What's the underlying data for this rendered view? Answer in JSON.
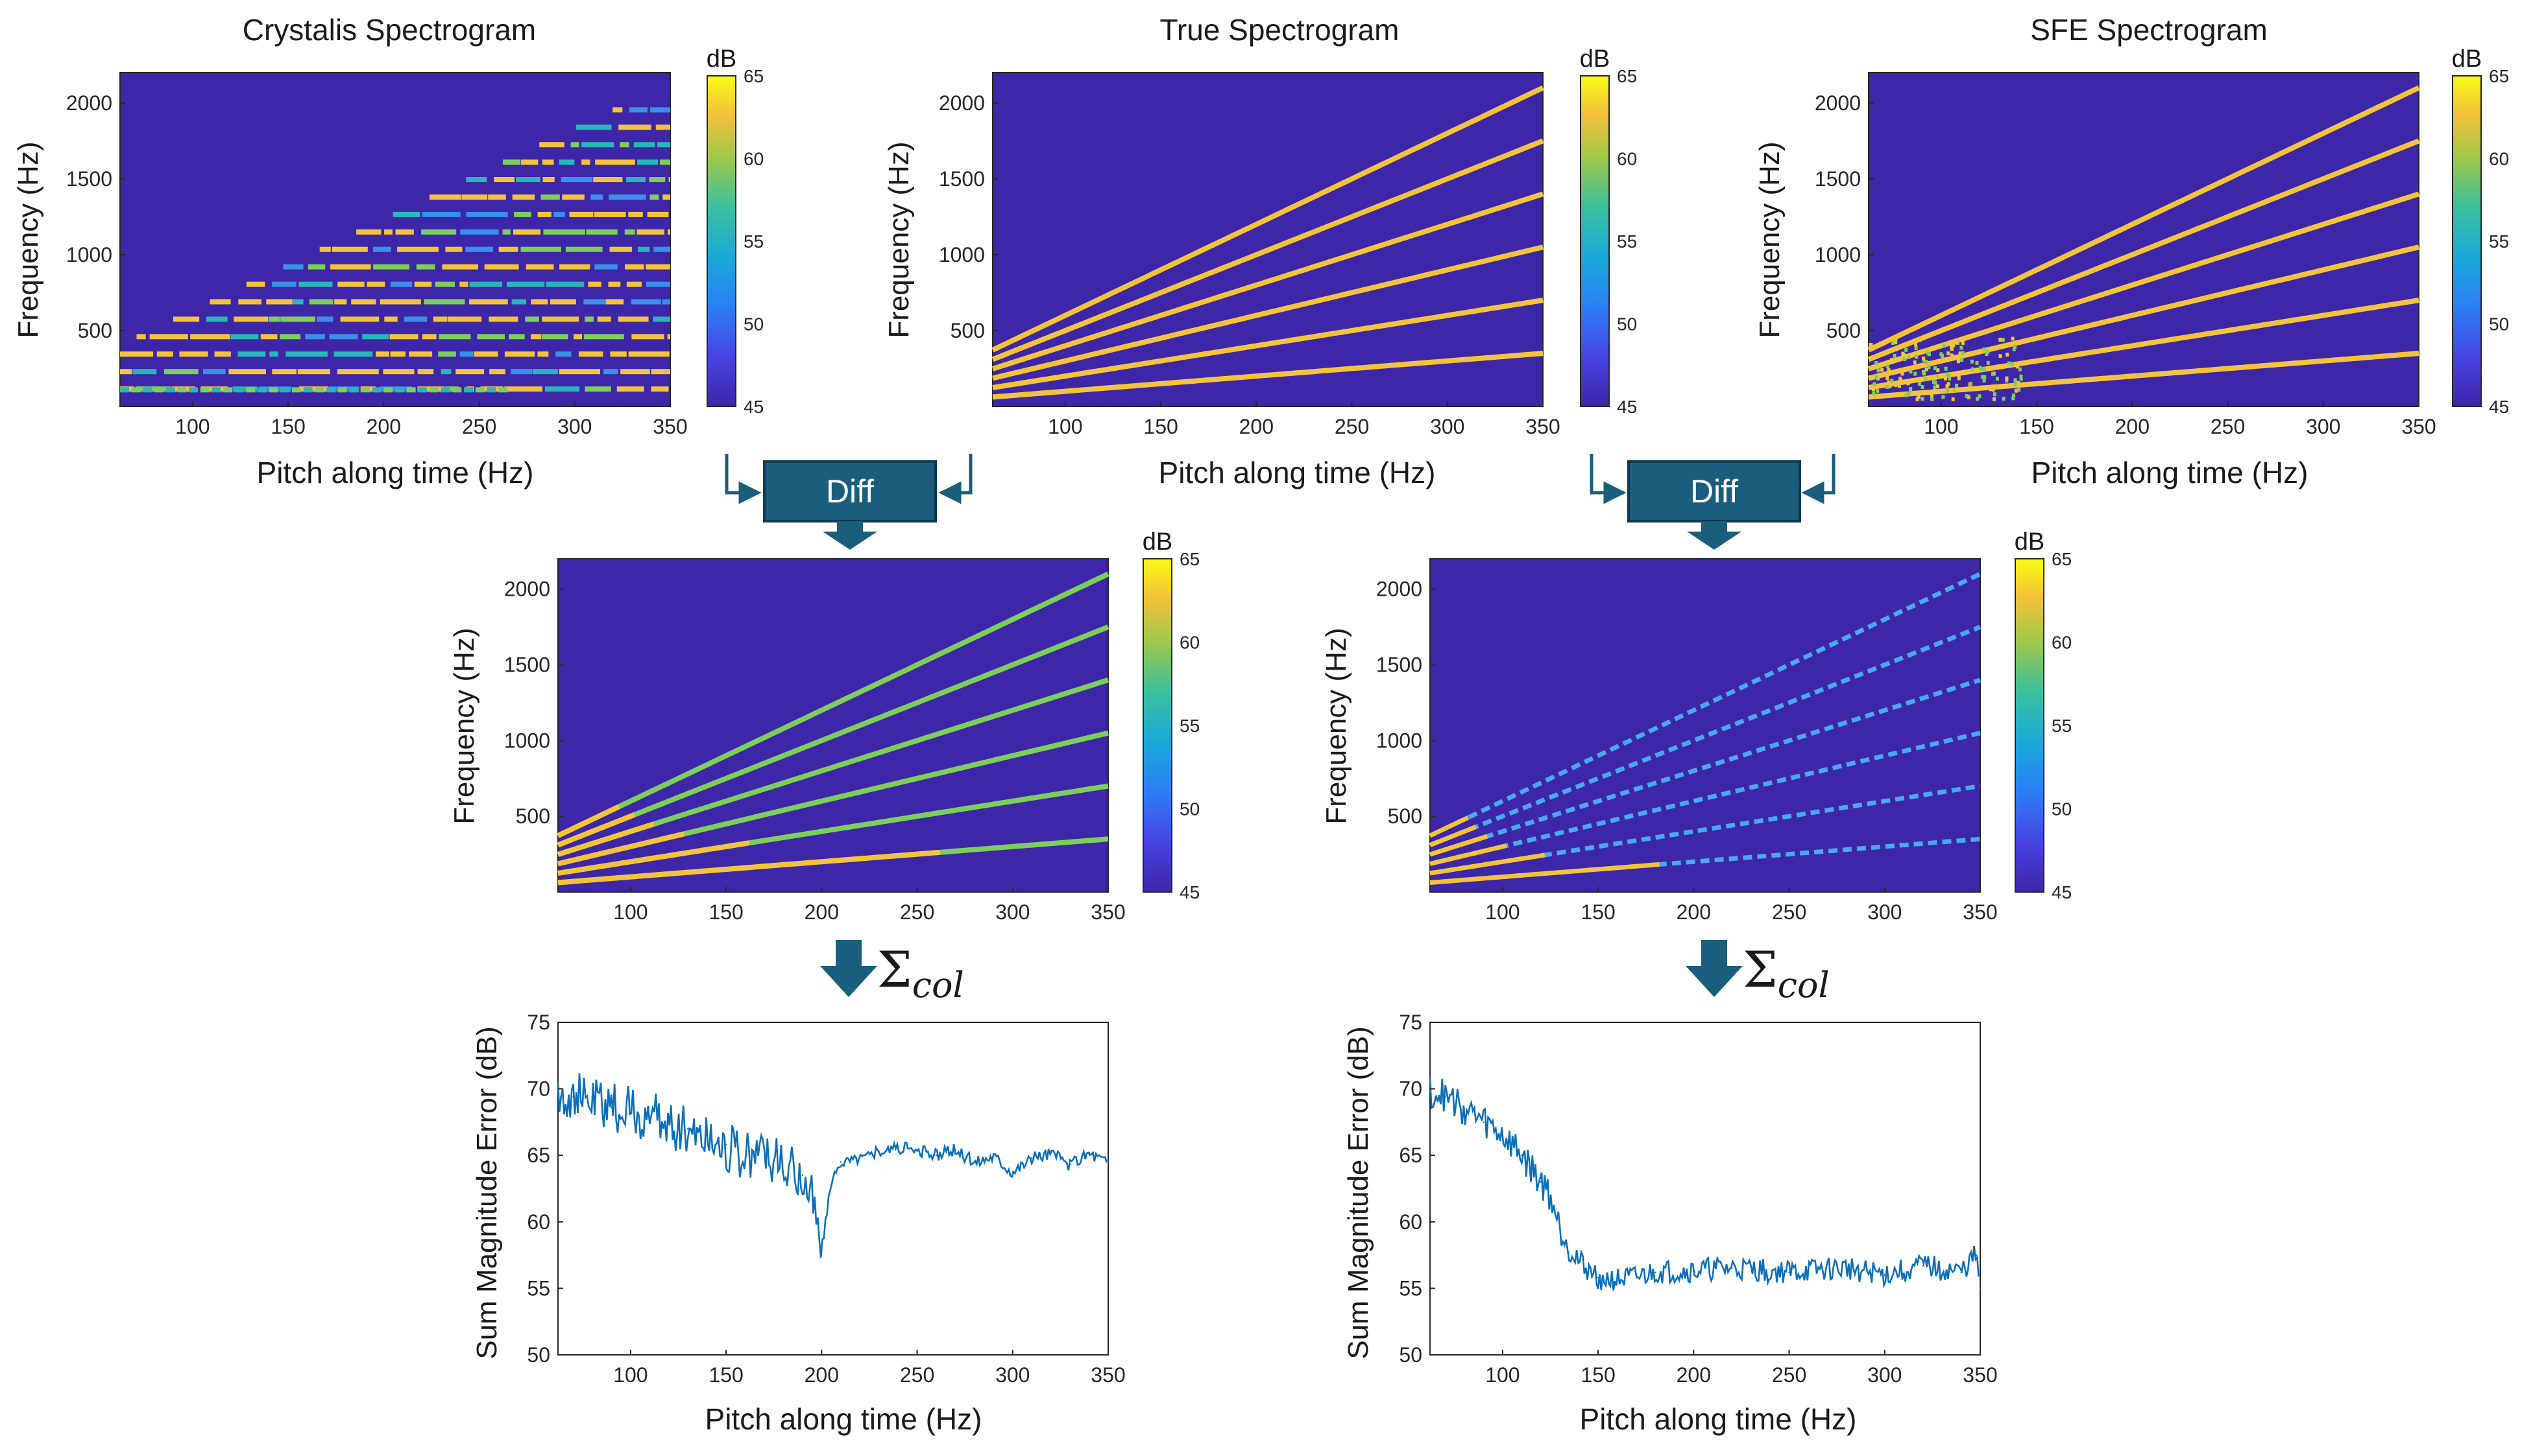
{
  "chart_data": [
    {
      "id": "crystalis",
      "type": "heatmap",
      "title": "Crystalis Spectrogram",
      "xlabel": "Pitch along time (Hz)",
      "ylabel": "Frequency (Hz)",
      "xlim": [
        62,
        350
      ],
      "ylim": [
        0,
        2200
      ],
      "xticks": [
        "100",
        "150",
        "200",
        "250",
        "300",
        "350"
      ],
      "yticks": [
        "500",
        "1000",
        "1500",
        "2000"
      ],
      "pattern": "quantized-horizontal-bands",
      "colorbar": {
        "label": "dB",
        "ticks": [
          "65",
          "60",
          "55",
          "50",
          "45"
        ],
        "min": 45,
        "max": 65
      }
    },
    {
      "id": "true",
      "type": "heatmap",
      "title": "True Spectrogram",
      "xlabel": "Pitch along time (Hz)",
      "ylabel": "Frequency (Hz)",
      "xlim": [
        62,
        350
      ],
      "ylim": [
        0,
        2200
      ],
      "xticks": [
        "100",
        "150",
        "200",
        "250",
        "300",
        "350"
      ],
      "yticks": [
        "500",
        "1000",
        "1500",
        "2000"
      ],
      "harmonics": [
        1,
        2,
        3,
        4,
        5,
        6
      ],
      "colorbar": {
        "label": "dB",
        "ticks": [
          "65",
          "60",
          "55",
          "50",
          "45"
        ],
        "min": 45,
        "max": 65
      }
    },
    {
      "id": "sfe",
      "type": "heatmap",
      "title": "SFE Spectrogram",
      "xlabel": "Pitch along time (Hz)",
      "ylabel": "Frequency (Hz)",
      "xlim": [
        62,
        350
      ],
      "ylim": [
        0,
        2200
      ],
      "xticks": [
        "100",
        "150",
        "200",
        "250",
        "300",
        "350"
      ],
      "yticks": [
        "500",
        "1000",
        "1500",
        "2000"
      ],
      "harmonics": [
        1,
        2,
        3,
        4,
        5,
        6
      ],
      "colorbar": {
        "label": "dB",
        "ticks": [
          "65",
          "60",
          "55",
          "50",
          "45"
        ],
        "min": 45,
        "max": 65
      }
    },
    {
      "id": "diff_crystalis",
      "type": "heatmap",
      "title": "",
      "xlabel": "",
      "ylabel": "Frequency (Hz)",
      "xlim": [
        62,
        350
      ],
      "ylim": [
        0,
        2200
      ],
      "xticks": [
        "100",
        "150",
        "200",
        "250",
        "300",
        "350"
      ],
      "yticks": [
        "500",
        "1000",
        "1500",
        "2000"
      ],
      "colorbar": {
        "label": "dB",
        "ticks": [
          "65",
          "60",
          "55",
          "50",
          "45"
        ],
        "min": 45,
        "max": 65
      }
    },
    {
      "id": "diff_sfe",
      "type": "heatmap",
      "title": "",
      "xlabel": "",
      "ylabel": "Frequency (Hz)",
      "xlim": [
        62,
        350
      ],
      "ylim": [
        0,
        2200
      ],
      "xticks": [
        "100",
        "150",
        "200",
        "250",
        "300",
        "350"
      ],
      "yticks": [
        "500",
        "1000",
        "1500",
        "2000"
      ],
      "colorbar": {
        "label": "dB",
        "ticks": [
          "65",
          "60",
          "55",
          "50",
          "45"
        ],
        "min": 45,
        "max": 65
      }
    },
    {
      "id": "err_crystalis",
      "type": "line",
      "title": "",
      "xlabel": "Pitch along time (Hz)",
      "ylabel": "Sum Magnitude Error (dB)",
      "xlim": [
        62,
        350
      ],
      "ylim": [
        50,
        75
      ],
      "xticks": [
        "100",
        "150",
        "200",
        "250",
        "300",
        "350"
      ],
      "yticks": [
        "50",
        "55",
        "60",
        "65",
        "70",
        "75"
      ],
      "x": [
        62,
        70,
        80,
        90,
        100,
        110,
        120,
        130,
        140,
        150,
        160,
        170,
        180,
        190,
        195,
        200,
        205,
        210,
        220,
        230,
        240,
        250,
        260,
        270,
        280,
        290,
        300,
        310,
        320,
        330,
        340,
        350
      ],
      "y": [
        69.8,
        69.4,
        69.0,
        68.6,
        68.2,
        67.8,
        67.4,
        67.0,
        66.5,
        65.8,
        64.8,
        65.5,
        63.8,
        63.5,
        62.0,
        58.0,
        62.8,
        64.5,
        64.8,
        65.3,
        65.6,
        65.3,
        65.0,
        65.4,
        64.5,
        65.0,
        63.8,
        64.8,
        65.2,
        64.3,
        65.2,
        64.5
      ]
    },
    {
      "id": "err_sfe",
      "type": "line",
      "title": "",
      "xlabel": "Pitch along time (Hz)",
      "ylabel": "Sum Magnitude Error (dB)",
      "xlim": [
        62,
        350
      ],
      "ylim": [
        50,
        75
      ],
      "xticks": [
        "100",
        "150",
        "200",
        "250",
        "300",
        "350"
      ],
      "yticks": [
        "50",
        "55",
        "60",
        "65",
        "70",
        "75"
      ],
      "x": [
        62,
        70,
        80,
        90,
        100,
        110,
        120,
        125,
        130,
        140,
        150,
        160,
        170,
        180,
        200,
        220,
        250,
        280,
        300,
        320,
        340,
        348,
        350
      ],
      "y": [
        69.8,
        69.4,
        68.5,
        67.5,
        66.5,
        65.0,
        63.0,
        62.0,
        59.5,
        57.0,
        55.8,
        55.6,
        55.8,
        56.2,
        56.3,
        56.5,
        56.2,
        56.5,
        56.0,
        56.7,
        56.2,
        57.5,
        55.0
      ]
    }
  ],
  "operations": {
    "diff_label": "Diff",
    "sum_symbol": "Σ",
    "sum_subscript": "col"
  }
}
